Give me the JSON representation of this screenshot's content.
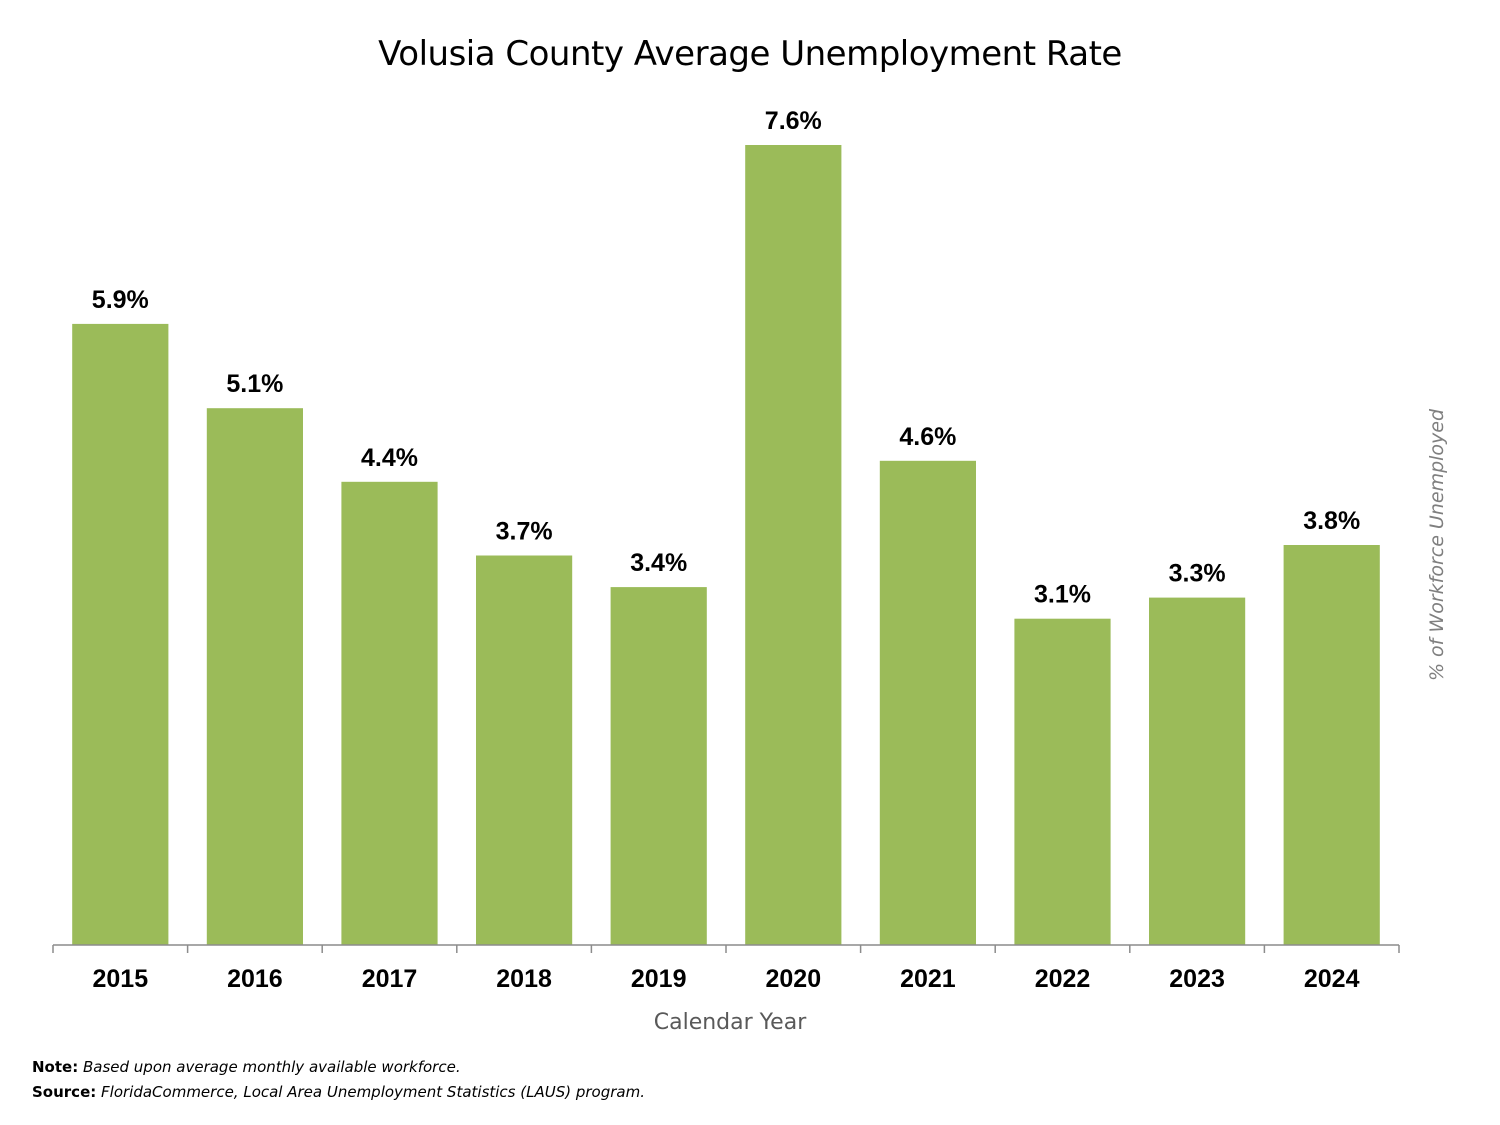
{
  "chart_data": {
    "type": "bar",
    "title": "Volusia County Average Unemployment Rate",
    "xlabel": "Calendar Year",
    "ylabel": "% of Workforce Unemployed",
    "categories": [
      "2015",
      "2016",
      "2017",
      "2018",
      "2019",
      "2020",
      "2021",
      "2022",
      "2023",
      "2024"
    ],
    "values": [
      5.9,
      5.1,
      4.4,
      3.7,
      3.4,
      7.6,
      4.6,
      3.1,
      3.3,
      3.8
    ],
    "data_labels": [
      "5.9%",
      "5.1%",
      "4.4%",
      "3.7%",
      "3.4%",
      "7.6%",
      "4.6%",
      "3.1%",
      "3.3%",
      "3.8%"
    ],
    "ylim": [
      0,
      8
    ],
    "grid": false,
    "legend": "none",
    "bar_color": "#9bbb59"
  },
  "notes": {
    "note_label": "Note:",
    "note_text": "Based upon average monthly available workforce.",
    "source_label": "Source:",
    "source_text": "FloridaCommerce, Local Area Unemployment Statistics (LAUS) program."
  }
}
